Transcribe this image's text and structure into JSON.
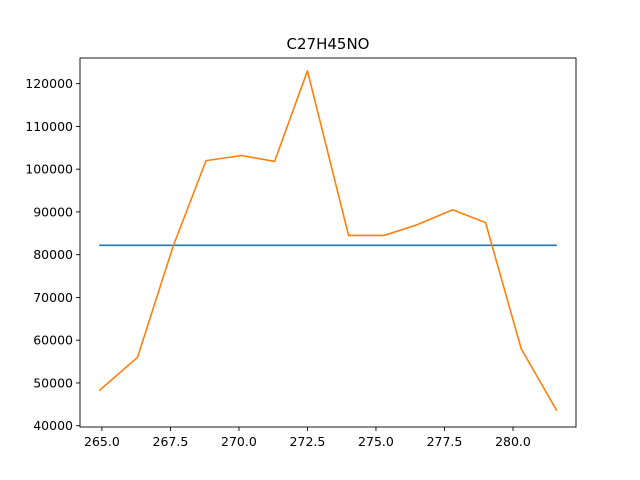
{
  "chart_data": {
    "type": "line",
    "title": "C27H45NO",
    "xlabel": "",
    "ylabel": "",
    "xlim": [
      264.2,
      282.3
    ],
    "ylim": [
      39700,
      126000
    ],
    "xticks": [
      265.0,
      267.5,
      270.0,
      272.5,
      275.0,
      277.5,
      280.0
    ],
    "xtick_labels": [
      "265.0",
      "267.5",
      "270.0",
      "272.5",
      "275.0",
      "277.5",
      "280.0"
    ],
    "yticks": [
      40000,
      50000,
      60000,
      70000,
      80000,
      90000,
      100000,
      110000,
      120000
    ],
    "ytick_labels": [
      "40000",
      "50000",
      "60000",
      "70000",
      "80000",
      "90000",
      "100000",
      "110000",
      "120000"
    ],
    "grid": false,
    "series": [
      {
        "color": "#1f77b4",
        "x": [
          264.9,
          281.6
        ],
        "y": [
          82200,
          82200
        ]
      },
      {
        "color": "#ff7f0e",
        "x": [
          264.9,
          266.3,
          267.6,
          268.8,
          270.1,
          271.3,
          272.5,
          274.0,
          275.3,
          276.5,
          277.8,
          279.0,
          280.3,
          281.6
        ],
        "y": [
          48200,
          56000,
          82000,
          102000,
          103200,
          101800,
          123000,
          84500,
          84500,
          87000,
          90500,
          87500,
          58000,
          43500
        ]
      }
    ]
  }
}
